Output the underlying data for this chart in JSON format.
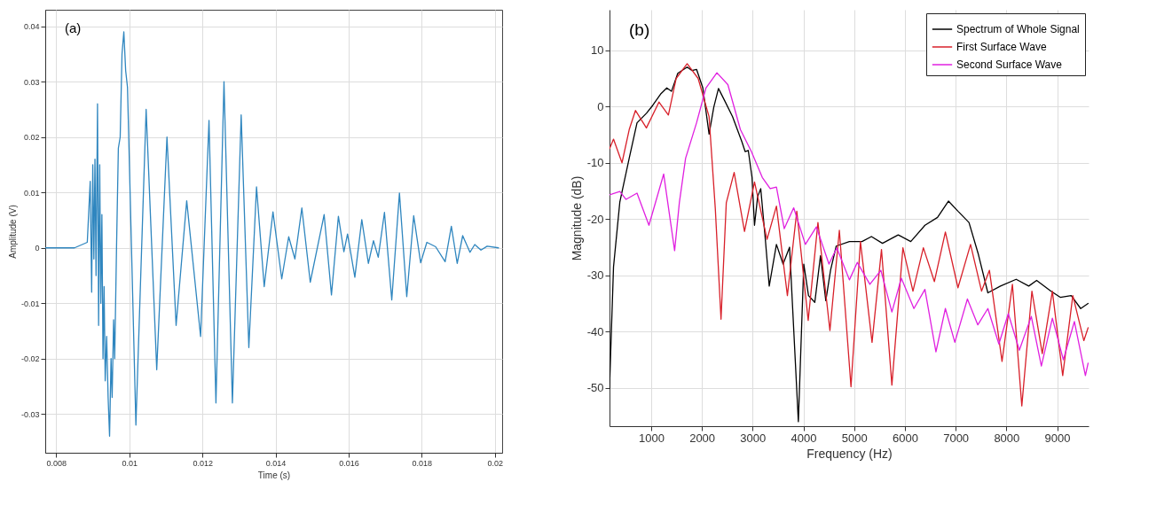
{
  "chart_data": [
    {
      "type": "line",
      "xlabel": "Time (s)",
      "ylabel": "Amplitude (V)",
      "annotations": [
        "(a)"
      ],
      "grid": true,
      "xlim": [
        0.0077,
        0.0202
      ],
      "xticks": [
        0.008,
        0.01,
        0.012,
        0.014,
        0.016,
        0.018,
        0.02
      ],
      "ylim": [
        -0.037,
        0.043
      ],
      "yticks": [
        -0.03,
        -0.02,
        -0.01,
        0,
        0.01,
        0.02,
        0.03,
        0.04
      ],
      "series": [
        {
          "color": "#2f86bf",
          "x": [
            0.0077,
            0.0085,
            0.00885,
            0.00893,
            0.00897,
            0.009,
            0.00903,
            0.00906,
            0.00909,
            0.00913,
            0.00916,
            0.00919,
            0.00922,
            0.00925,
            0.00928,
            0.00931,
            0.00934,
            0.00938,
            0.00942,
            0.00946,
            0.0095,
            0.00953,
            0.00957,
            0.0096,
            0.00965,
            0.0097,
            0.00975,
            0.0098,
            0.00985,
            0.0099,
            0.00995,
            0.01018,
            0.01046,
            0.01075,
            0.01103,
            0.01128,
            0.01157,
            0.01195,
            0.01218,
            0.01237,
            0.01259,
            0.01282,
            0.01306,
            0.01327,
            0.01348,
            0.01369,
            0.01393,
            0.01417,
            0.01436,
            0.01453,
            0.01472,
            0.01495,
            0.01533,
            0.01553,
            0.01572,
            0.01587,
            0.01597,
            0.01617,
            0.01636,
            0.01654,
            0.01668,
            0.01681,
            0.01698,
            0.01718,
            0.01739,
            0.01759,
            0.01778,
            0.01797,
            0.01814,
            0.01838,
            0.01864,
            0.01881,
            0.01897,
            0.01912,
            0.01932,
            0.01945,
            0.01962,
            0.01979,
            0.0201
          ],
          "values": [
            0,
            0,
            0.001,
            0.012,
            -0.008,
            0.015,
            -0.002,
            0.016,
            -0.005,
            0.026,
            -0.014,
            0.015,
            -0.01,
            0.006,
            -0.02,
            -0.007,
            -0.024,
            -0.016,
            -0.027,
            -0.034,
            -0.02,
            -0.027,
            -0.013,
            -0.02,
            0,
            0.018,
            0.02,
            0.035,
            0.039,
            0.032,
            0.029,
            -0.032,
            0.025,
            -0.022,
            0.02,
            -0.014,
            0.0085,
            -0.016,
            0.023,
            -0.028,
            0.03,
            -0.028,
            0.024,
            -0.018,
            0.011,
            -0.007,
            0.0065,
            -0.0056,
            0.002,
            -0.002,
            0.0072,
            -0.0062,
            0.006,
            -0.0085,
            0.0057,
            -0.0007,
            0.0025,
            -0.0053,
            0.0051,
            -0.0028,
            0.0013,
            -0.0017,
            0.0064,
            -0.0094,
            0.0099,
            -0.0088,
            0.0058,
            -0.0027,
            0.001,
            0.0002,
            -0.0025,
            0.0039,
            -0.0028,
            0.0022,
            -0.0008,
            0.0006,
            -0.0004,
            0.0003,
            0
          ]
        }
      ]
    },
    {
      "type": "line",
      "xlabel": "Frequency (Hz)",
      "ylabel": "Magnitude (dB)",
      "annotations": [
        "(b)"
      ],
      "grid": true,
      "legend": "top right",
      "xlim": [
        180,
        9620
      ],
      "xticks": [
        1000,
        2000,
        3000,
        4000,
        5000,
        6000,
        7000,
        8000,
        9000
      ],
      "ylim": [
        -56.8,
        17.2
      ],
      "yticks": [
        -50,
        -40,
        -30,
        -20,
        -10,
        0,
        10
      ],
      "series": [
        {
          "name": "Spectrum of Whole Signal",
          "color": "#000000",
          "x": [
            180,
            259,
            383,
            568,
            722,
            907,
            1031,
            1185,
            1309,
            1401,
            1525,
            1710,
            1802,
            1895,
            2019,
            2142,
            2235,
            2327,
            2451,
            2605,
            2790,
            2852,
            2914,
            2988,
            3037,
            3099,
            3160,
            3253,
            3327,
            3469,
            3600,
            3728,
            3901,
            4008,
            4101,
            4225,
            4337,
            4442,
            4535,
            4647,
            4907,
            5155,
            5341,
            5558,
            5868,
            6116,
            6395,
            6643,
            6860,
            7046,
            7263,
            7449,
            7635,
            7883,
            8193,
            8441,
            8596,
            8875,
            9061,
            9278,
            9464,
            9610
          ],
          "values": [
            -50,
            -28.5,
            -17,
            -9.2,
            -2.9,
            -1.2,
            0.2,
            2.2,
            3.3,
            2.7,
            5.9,
            7.0,
            6.4,
            6.6,
            3.3,
            -4.9,
            -0.1,
            3.2,
            1.0,
            -1.8,
            -6.3,
            -8.0,
            -7.8,
            -12.6,
            -21.1,
            -16,
            -14.6,
            -23.9,
            -31.9,
            -24.5,
            -28,
            -25,
            -56,
            -28,
            -33.6,
            -34.8,
            -26.5,
            -34.5,
            -29.1,
            -24.8,
            -24,
            -24,
            -23.1,
            -24.3,
            -22.8,
            -24,
            -21.1,
            -19.7,
            -16.8,
            -18.6,
            -20.6,
            -26.3,
            -33.1,
            -31.9,
            -30.7,
            -31.9,
            -30.9,
            -32.8,
            -33.9,
            -33.6,
            -35.9,
            -35
          ]
        },
        {
          "name": "First Surface Wave",
          "color": "#d8202a",
          "x": [
            180,
            259,
            426,
            568,
            691,
            907,
            1154,
            1340,
            1494,
            1710,
            1926,
            2142,
            2265,
            2377,
            2481,
            2636,
            2840,
            3037,
            3284,
            3469,
            3685,
            3870,
            4095,
            4287,
            4523,
            4709,
            4938,
            5124,
            5353,
            5539,
            5744,
            5961,
            6159,
            6364,
            6581,
            6798,
            7046,
            7294,
            7511,
            7666,
            7914,
            8119,
            8304,
            8503,
            8707,
            8906,
            9110,
            9309,
            9526,
            9610
          ],
          "values": [
            -7.5,
            -5.8,
            -10,
            -4.1,
            -0.7,
            -3.8,
            0.8,
            -1.5,
            5,
            7.6,
            5,
            -1.8,
            -18.2,
            -37.8,
            -17.1,
            -11.7,
            -22.2,
            -13.4,
            -23.6,
            -17.7,
            -33.6,
            -18.6,
            -38,
            -20.6,
            -39.8,
            -22,
            -49.8,
            -24,
            -41.9,
            -25.4,
            -49.5,
            -25.1,
            -32.8,
            -25.1,
            -31.1,
            -22.3,
            -32.2,
            -24.5,
            -32.8,
            -29.1,
            -45.3,
            -31.6,
            -53.2,
            -32.8,
            -43.9,
            -32.8,
            -47.8,
            -33.6,
            -41.6,
            -39.3
          ]
        },
        {
          "name": "Second Surface Wave",
          "color": "#e020e0",
          "x": [
            180,
            383,
            506,
            722,
            957,
            1247,
            1463,
            1556,
            1679,
            1895,
            2080,
            2296,
            2512,
            2759,
            2975,
            3191,
            3346,
            3469,
            3623,
            3809,
            4039,
            4256,
            4504,
            4659,
            4907,
            5062,
            5310,
            5527,
            5744,
            5930,
            6178,
            6395,
            6612,
            6798,
            6984,
            7232,
            7437,
            7635,
            7852,
            8038,
            8255,
            8491,
            8689,
            8906,
            9123,
            9340,
            9557,
            9610
          ],
          "values": [
            -15.7,
            -15.1,
            -16.5,
            -15.4,
            -21.1,
            -12,
            -25.6,
            -17.1,
            -9.2,
            -2.9,
            3.3,
            6,
            3.9,
            -4.1,
            -8,
            -12.6,
            -14.6,
            -14.3,
            -21.7,
            -18,
            -24.5,
            -21.4,
            -28,
            -25.1,
            -30.8,
            -27.7,
            -31.6,
            -29.1,
            -36.5,
            -30.5,
            -35.9,
            -32.5,
            -43.6,
            -35.9,
            -41.9,
            -34.2,
            -38.8,
            -35.9,
            -42.2,
            -36.8,
            -43.3,
            -37.3,
            -46.1,
            -37.6,
            -45,
            -38.2,
            -47.8,
            -45.6
          ]
        }
      ]
    }
  ]
}
